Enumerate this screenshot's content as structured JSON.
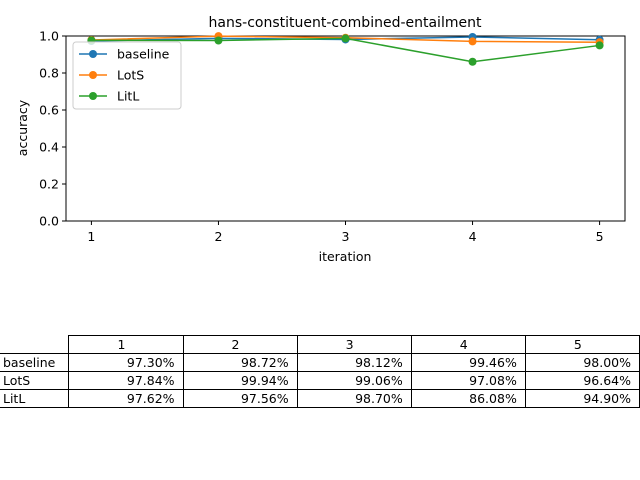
{
  "chart_data": {
    "type": "line",
    "title": "hans-constituent-combined-entailment",
    "xlabel": "iteration",
    "ylabel": "accuracy",
    "x": [
      1,
      2,
      3,
      4,
      5
    ],
    "xlim": [
      0.8,
      5.2
    ],
    "ylim": [
      0.0,
      1.0
    ],
    "yticks": [
      "0.0",
      "0.2",
      "0.4",
      "0.6",
      "0.8",
      "1.0"
    ],
    "xticks": [
      "1",
      "2",
      "3",
      "4",
      "5"
    ],
    "grid": false,
    "legend_position": "upper-left",
    "series": [
      {
        "name": "baseline",
        "color": "#1f77b4",
        "values": [
          0.973,
          0.9872,
          0.9812,
          0.9946,
          0.98
        ]
      },
      {
        "name": "LotS",
        "color": "#ff7f0e",
        "values": [
          0.9784,
          0.9994,
          0.9906,
          0.9708,
          0.9664
        ]
      },
      {
        "name": "LitL",
        "color": "#2ca02c",
        "values": [
          0.9762,
          0.9756,
          0.987,
          0.8608,
          0.949
        ]
      }
    ]
  },
  "table": {
    "columns": [
      "1",
      "2",
      "3",
      "4",
      "5"
    ],
    "rows": [
      {
        "label": "baseline",
        "cells": [
          "97.30%",
          "98.72%",
          "98.12%",
          "99.46%",
          "98.00%"
        ]
      },
      {
        "label": "LotS",
        "cells": [
          "97.84%",
          "99.94%",
          "99.06%",
          "97.08%",
          "96.64%"
        ]
      },
      {
        "label": "LitL",
        "cells": [
          "97.62%",
          "97.56%",
          "98.70%",
          "86.08%",
          "94.90%"
        ]
      }
    ]
  }
}
